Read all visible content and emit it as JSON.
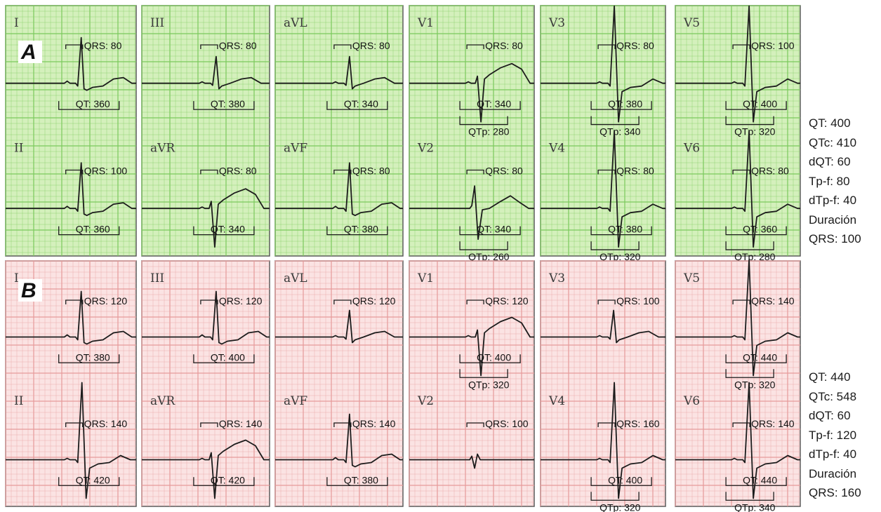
{
  "panels": [
    {
      "letter": "A",
      "grid_color": "#7bc95c",
      "bg_color": "#d4f0bc",
      "leads": [
        {
          "lead": "I",
          "qrs": "QRS: 80",
          "qt": "QT: 360",
          "qtp": "",
          "shape": "pos"
        },
        {
          "lead": "III",
          "qrs": "QRS: 80",
          "qt": "QT: 380",
          "qtp": "",
          "shape": "pos_small"
        },
        {
          "lead": "aVL",
          "qrs": "QRS: 80",
          "qt": "QT: 340",
          "qtp": "",
          "shape": "pos_small"
        },
        {
          "lead": "V1",
          "qrs": "QRS: 80",
          "qt": "QT: 340",
          "qtp": "QTp: 280",
          "shape": "neg"
        },
        {
          "lead": "V3",
          "qrs": "QRS: 80",
          "qt": "QT: 380",
          "qtp": "QTp: 340",
          "shape": "big"
        },
        {
          "lead": "V5",
          "qrs": "QRS: 100",
          "qt": "QT: 400",
          "qtp": "QTp: 320",
          "shape": "big"
        },
        {
          "lead": "II",
          "qrs": "QRS: 100",
          "qt": "QT: 360",
          "qtp": "",
          "shape": "pos"
        },
        {
          "lead": "aVR",
          "qrs": "QRS: 80",
          "qt": "QT: 340",
          "qtp": "",
          "shape": "neg"
        },
        {
          "lead": "aVF",
          "qrs": "QRS: 80",
          "qt": "QT: 380",
          "qtp": "",
          "shape": "pos"
        },
        {
          "lead": "V2",
          "qrs": "QRS: 80",
          "qt": "QT: 340",
          "qtp": "QTp: 260",
          "shape": "biphasic"
        },
        {
          "lead": "V4",
          "qrs": "QRS: 80",
          "qt": "QT: 380",
          "qtp": "QTp: 320",
          "shape": "big"
        },
        {
          "lead": "V6",
          "qrs": "QRS: 80",
          "qt": "QT: 360",
          "qtp": "QTp: 280",
          "shape": "big"
        }
      ],
      "stats": [
        "QT: 400",
        "QTc:  410",
        "dQT: 60",
        "Tp-f: 80",
        "dTp-f: 40",
        "Duración",
        "QRS: 100"
      ]
    },
    {
      "letter": "B",
      "grid_color": "#e69a9a",
      "bg_color": "#fbe3e3",
      "leads": [
        {
          "lead": "I",
          "qrs": "QRS: 120",
          "qt": "QT: 380",
          "qtp": "",
          "shape": "pos"
        },
        {
          "lead": "III",
          "qrs": "QRS: 120",
          "qt": "QT: 400",
          "qtp": "",
          "shape": "pos"
        },
        {
          "lead": "aVL",
          "qrs": "QRS: 120",
          "qt": "",
          "qtp": "",
          "shape": "pos_small"
        },
        {
          "lead": "V1",
          "qrs": "QRS: 120",
          "qt": "QT: 400",
          "qtp": "QTp: 320",
          "shape": "neg"
        },
        {
          "lead": "V3",
          "qrs": "QRS: 100",
          "qt": "",
          "qtp": "",
          "shape": "pos_small"
        },
        {
          "lead": "V5",
          "qrs": "QRS: 140",
          "qt": "QT: 440",
          "qtp": "QTp: 320",
          "shape": "big"
        },
        {
          "lead": "II",
          "qrs": "QRS: 140",
          "qt": "QT: 420",
          "qtp": "",
          "shape": "big"
        },
        {
          "lead": "aVR",
          "qrs": "QRS: 140",
          "qt": "QT: 420",
          "qtp": "",
          "shape": "neg"
        },
        {
          "lead": "aVF",
          "qrs": "QRS: 140",
          "qt": "QT: 380",
          "qtp": "",
          "shape": "pos"
        },
        {
          "lead": "V2",
          "qrs": "QRS: 100",
          "qt": "",
          "qtp": "",
          "shape": "neg_small"
        },
        {
          "lead": "V4",
          "qrs": "QRS: 160",
          "qt": "QT: 400",
          "qtp": "QTp: 320",
          "shape": "big"
        },
        {
          "lead": "V6",
          "qrs": "QRS: 140",
          "qt": "QT: 440",
          "qtp": "QTp: 340",
          "shape": "big"
        }
      ],
      "stats": [
        "QT: 440",
        "QTc:  548",
        "dQT: 60",
        "Tp-f: 120",
        "dTp-f: 40",
        "Duración",
        "QRS: 160"
      ]
    }
  ]
}
